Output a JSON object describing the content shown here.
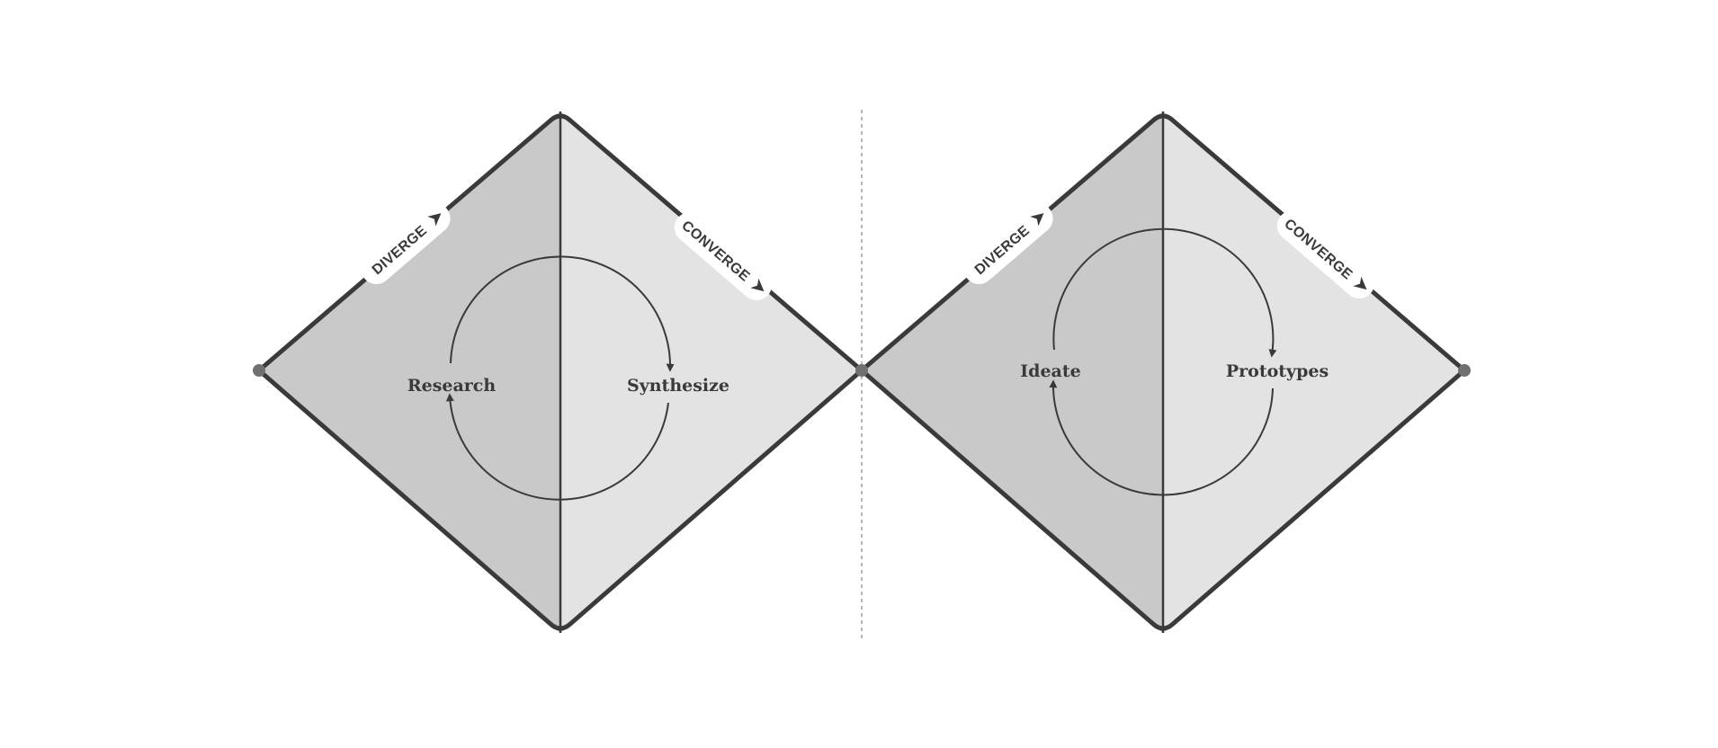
{
  "diagram": {
    "colors": {
      "left_half": "#c9c9c9",
      "right_half": "#e3e3e3",
      "outline": "#3a3a3a",
      "node": "#707070",
      "badge_fill": "#ffffff",
      "separator": "#b8b8b8"
    },
    "diamonds": [
      {
        "diverge_label": "DIVERGE",
        "converge_label": "CONVERGE",
        "phase_left": "Research",
        "phase_right": "Synthesize"
      },
      {
        "diverge_label": "DIVERGE",
        "converge_label": "CONVERGE",
        "phase_left": "Ideate",
        "phase_right": "Prototypes"
      }
    ]
  }
}
